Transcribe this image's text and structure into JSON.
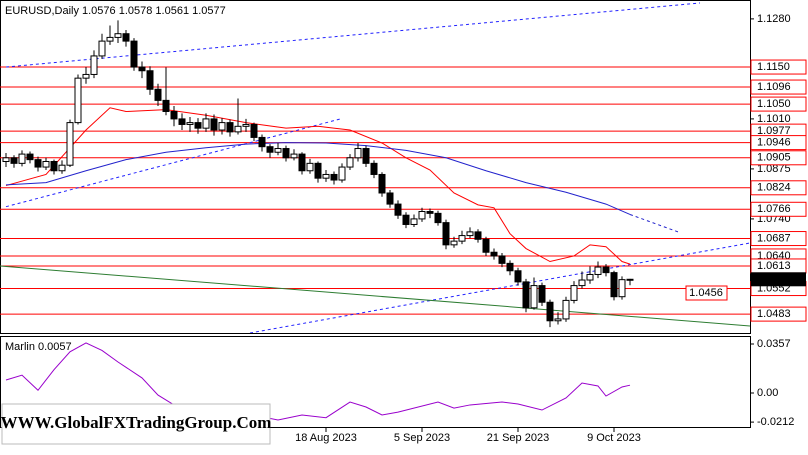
{
  "chart_data": [
    {
      "type": "candlestick",
      "title": "EURUSD,Daily  1.0576 1.0578 1.0561 1.0577",
      "categories": [
        null,
        null,
        null,
        null,
        null,
        null,
        null,
        null,
        null,
        null,
        null,
        null,
        null,
        null,
        null,
        null,
        null,
        null,
        null,
        null,
        null,
        null,
        null,
        null,
        null,
        null,
        null,
        null,
        null,
        null,
        null,
        null,
        null,
        null,
        null,
        null,
        null,
        null,
        null,
        null,
        "18 Aug 2023",
        null,
        null,
        null,
        null,
        null,
        null,
        null,
        null,
        null,
        null,
        null,
        "5 Sep 2023",
        null,
        null,
        null,
        null,
        null,
        null,
        null,
        null,
        null,
        null,
        null,
        "21 Sep 2023",
        null,
        null,
        null,
        null,
        null,
        null,
        null,
        null,
        null,
        null,
        null,
        "9 Oct 2023",
        null,
        null
      ],
      "open": [
        1.0895,
        1.0905,
        1.089,
        1.0915,
        1.09,
        1.088,
        1.0895,
        1.087,
        1.0885,
        1.1,
        1.112,
        1.113,
        1.118,
        1.122,
        1.123,
        1.124,
        1.122,
        1.115,
        1.114,
        1.109,
        1.106,
        1.103,
        1.101,
        1.0995,
        1.1,
        1.0985,
        1.101,
        1.098,
        1.1,
        1.0975,
        1.099,
        1.0995,
        1.096,
        1.0935,
        1.092,
        1.093,
        1.0905,
        1.0915,
        1.087,
        1.089,
        1.085,
        1.086,
        1.0845,
        1.088,
        1.0905,
        1.093,
        1.089,
        1.086,
        1.081,
        1.078,
        1.075,
        1.0725,
        1.074,
        1.076,
        1.0755,
        1.073,
        1.067,
        1.068,
        1.0695,
        1.0705,
        1.0685,
        1.065,
        1.064,
        1.062,
        1.06,
        1.057,
        1.05,
        1.056,
        1.0515,
        1.0465,
        1.047,
        1.052,
        1.056,
        1.0575,
        1.059,
        1.061,
        1.0595,
        1.053,
        1.0576
      ],
      "high": [
        1.0918,
        1.0912,
        1.0925,
        1.0922,
        1.0908,
        1.0905,
        1.09,
        1.0898,
        1.1008,
        1.113,
        1.115,
        1.1195,
        1.124,
        1.1262,
        1.1276,
        1.125,
        1.1228,
        1.1165,
        1.1152,
        1.1105,
        1.1149,
        1.1045,
        1.1025,
        1.1015,
        1.1012,
        1.1025,
        1.1022,
        1.1012,
        1.1008,
        1.1065,
        1.101,
        1.1,
        1.0968,
        1.0942,
        1.0945,
        1.0938,
        1.0928,
        1.092,
        1.0902,
        1.0895,
        1.0872,
        1.0868,
        1.089,
        1.0915,
        1.0945,
        1.0938,
        1.0898,
        1.0866,
        1.0818,
        1.079,
        1.0758,
        1.0752,
        1.077,
        1.0768,
        1.0762,
        1.0738,
        1.0692,
        1.0708,
        1.0717,
        1.0712,
        1.0692,
        1.066,
        1.0648,
        1.0628,
        1.0608,
        1.0578,
        1.0582,
        1.0568,
        1.0522,
        1.0488,
        1.053,
        1.0572,
        1.0598,
        1.0612,
        1.0625,
        1.0618,
        1.06,
        1.0585,
        1.0578
      ],
      "low": [
        1.088,
        1.0878,
        1.0882,
        1.089,
        1.0868,
        1.0872,
        1.086,
        1.0862,
        1.088,
        1.0995,
        1.1105,
        1.112,
        1.1172,
        1.121,
        1.1215,
        1.1205,
        1.114,
        1.112,
        1.1075,
        1.1045,
        1.102,
        1.099,
        1.098,
        1.0975,
        1.097,
        1.0975,
        1.0965,
        1.0968,
        1.0962,
        1.0968,
        1.0975,
        1.095,
        1.0922,
        1.0905,
        1.0912,
        1.0895,
        1.0898,
        1.086,
        1.0862,
        1.0838,
        1.084,
        1.0833,
        1.0838,
        1.0872,
        1.0895,
        1.088,
        1.085,
        1.08,
        1.077,
        1.074,
        1.0715,
        1.0718,
        1.0732,
        1.0742,
        1.0722,
        1.0658,
        1.0662,
        1.0672,
        1.0688,
        1.0676,
        1.064,
        1.063,
        1.061,
        1.0588,
        1.056,
        1.0488,
        1.0495,
        1.0505,
        1.0448,
        1.0455,
        1.0462,
        1.0512,
        1.0552,
        1.0565,
        1.058,
        1.0585,
        1.052,
        1.0522,
        1.0561
      ],
      "close": [
        1.0905,
        1.089,
        1.0915,
        1.09,
        1.088,
        1.0895,
        1.087,
        1.0885,
        1.1,
        1.112,
        1.113,
        1.118,
        1.122,
        1.123,
        1.124,
        1.122,
        1.115,
        1.114,
        1.109,
        1.106,
        1.103,
        1.101,
        1.0995,
        1.1,
        1.0985,
        1.101,
        1.098,
        1.1,
        1.0975,
        1.099,
        1.0995,
        1.096,
        1.0935,
        1.092,
        1.093,
        1.0905,
        1.0915,
        1.087,
        1.089,
        1.085,
        1.086,
        1.0845,
        1.088,
        1.0905,
        1.093,
        1.089,
        1.086,
        1.081,
        1.078,
        1.075,
        1.0725,
        1.074,
        1.076,
        1.0755,
        1.073,
        1.067,
        1.068,
        1.0695,
        1.0705,
        1.0685,
        1.065,
        1.064,
        1.062,
        1.06,
        1.057,
        1.05,
        1.056,
        1.0515,
        1.0465,
        1.047,
        1.052,
        1.056,
        1.0575,
        1.059,
        1.061,
        1.0595,
        1.053,
        1.0576,
        1.0577
      ],
      "ylim": [
        1.0432,
        1.1331
      ],
      "yticks": [
        {
          "value": 1.128,
          "label": "1.1280"
        },
        {
          "value": 1.101,
          "label": "1.1010"
        },
        1.0875,
        {
          "value": 1.074,
          "label": "1.0740"
        }
      ],
      "levels": [
        {
          "value": 1.115,
          "label": "1.1150"
        },
        1.1096,
        {
          "value": 1.105,
          "label": "1.1050"
        },
        1.0977,
        1.0946,
        1.0905,
        1.0824,
        1.0766,
        1.0687,
        {
          "value": 1.064,
          "label": "1.0640"
        },
        1.0613,
        1.0552,
        1.0483
      ],
      "level_color": "#ff0000",
      "last_price": 1.0577,
      "series": [
        {
          "color": "#ff0000",
          "x": [
            0,
            5,
            10,
            13,
            15,
            20,
            25,
            30,
            35,
            39,
            43,
            47,
            50,
            53,
            56,
            59,
            61,
            63,
            65,
            68,
            71,
            73,
            75,
            77,
            78
          ],
          "values": [
            1.083,
            1.086,
            1.098,
            1.104,
            1.103,
            1.1035,
            1.102,
            1.1,
            1.0985,
            1.099,
            1.098,
            1.0945,
            1.0905,
            1.0872,
            1.081,
            1.0778,
            1.077,
            1.07,
            1.066,
            1.0625,
            1.064,
            1.067,
            1.0665,
            1.0625,
            1.0618
          ]
        },
        {
          "color": "#2222cc",
          "x": [
            0,
            5,
            10,
            15,
            20,
            25,
            30,
            35,
            40,
            45,
            50,
            55,
            60,
            65,
            70,
            75,
            78
          ],
          "values": [
            1.0832,
            1.0838,
            1.087,
            1.09,
            1.092,
            1.0932,
            1.0942,
            1.0946,
            1.0945,
            1.0938,
            1.0925,
            1.0905,
            1.087,
            1.0838,
            1.0812,
            1.078,
            1.0752
          ]
        }
      ],
      "trendlines": [
        {
          "color": "#2222ff",
          "dashed": true,
          "x": [
            0,
            86.75
          ],
          "values": [
            1.115,
            1.1323
          ]
        },
        {
          "color": "#2222ff",
          "dashed": true,
          "x": [
            0,
            42
          ],
          "values": [
            1.0773,
            1.1011
          ]
        },
        {
          "color": "#2222ff",
          "dashed": true,
          "x": [
            30.5,
            93
          ],
          "values": [
            1.0432,
            1.0675
          ]
        },
        {
          "color": "#2222cc",
          "dashed": true,
          "x": [
            78,
            84
          ],
          "values": [
            1.0752,
            1.0705
          ]
        },
        {
          "color": "#2e7d32",
          "dashed": false,
          "x": [
            -0.75,
            93
          ],
          "values": [
            1.0613,
            1.0451
          ]
        }
      ],
      "annotation": "1.0456"
    },
    {
      "type": "line",
      "title": "Marlin 0.0057",
      "color": "#9900cc",
      "x": [
        0,
        2,
        4,
        6,
        8,
        10,
        12,
        14,
        17,
        19,
        21,
        24,
        29,
        34,
        37,
        40,
        43,
        45,
        47,
        49,
        54,
        56,
        58,
        62,
        64,
        67,
        70,
        72,
        74,
        75,
        77,
        78
      ],
      "values": [
        0.0095,
        0.013,
        0.002,
        0.017,
        0.03,
        0.0365,
        0.031,
        0.0226,
        0.011,
        -0.0015,
        -0.0087,
        -0.0124,
        -0.0139,
        -0.0197,
        -0.016,
        -0.018,
        -0.0066,
        -0.0102,
        -0.016,
        -0.0139,
        -0.0066,
        -0.011,
        -0.0087,
        -0.0066,
        -0.008,
        -0.0124,
        -0.0036,
        0.0073,
        0.0051,
        -0.0022,
        0.0044,
        0.0057
      ],
      "ylim": [
        -0.0255,
        0.0408
      ],
      "yticks": [
        0.0357,
        {
          "value": 0,
          "label": "0.00"
        },
        -0.0212
      ]
    }
  ],
  "watermark": "WWW.GlobalFXTradingGroup.Com"
}
